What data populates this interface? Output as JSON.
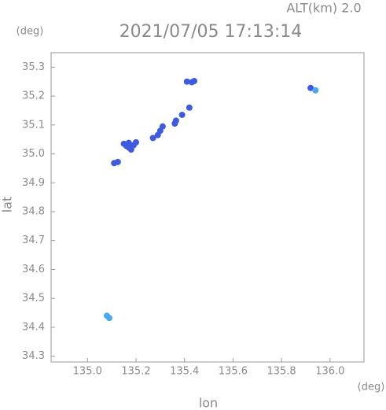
{
  "chart_data": {
    "type": "scatter",
    "title": "2021/07/05 17:13:14",
    "subtitle": "ALT(km)  2.0",
    "x_label": "lon",
    "y_label": "lat",
    "x_unit": "(deg)",
    "y_unit": "(deg)",
    "xlim": [
      134.85,
      136.14
    ],
    "ylim": [
      34.28,
      35.35
    ],
    "xticks": [
      {
        "value": 135.0,
        "label": "135.0"
      },
      135.2,
      135.4,
      135.6,
      135.8,
      {
        "value": 136.0,
        "label": "136.0"
      }
    ],
    "yticks": [
      34.3,
      34.4,
      34.5,
      34.6,
      34.7,
      34.8,
      34.9,
      {
        "value": 35.0,
        "label": "35.0"
      },
      35.1,
      35.2,
      35.3
    ],
    "grid": false,
    "series": [
      {
        "color": "#3d5ae0",
        "x": [
          135.41,
          135.43,
          135.44,
          135.92,
          135.15,
          135.17,
          135.19,
          135.17,
          135.2,
          135.16,
          135.18,
          135.11,
          135.125,
          135.27,
          135.29,
          135.3,
          135.31,
          135.36,
          135.365,
          135.39,
          135.42
        ],
        "values": [
          35.25,
          35.248,
          35.252,
          35.228,
          35.035,
          35.038,
          35.03,
          35.022,
          35.04,
          35.028,
          35.015,
          34.968,
          34.972,
          35.055,
          35.065,
          35.08,
          35.095,
          35.105,
          35.115,
          35.135,
          35.16
        ]
      },
      {
        "color": "#4aa8f0",
        "x": [
          135.94,
          135.08,
          135.09
        ],
        "values": [
          35.22,
          34.44,
          34.432
        ]
      }
    ]
  }
}
